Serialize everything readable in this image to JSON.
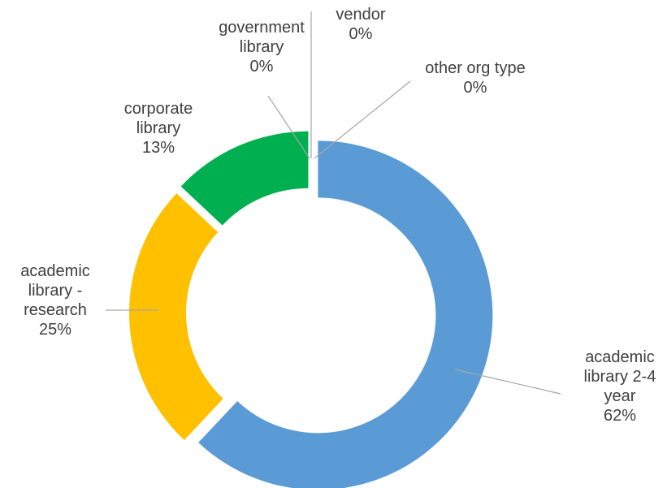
{
  "chart_data": {
    "type": "donut",
    "categories": [
      "academic library 2-4 year",
      "academic library - research",
      "corporate library",
      "government library",
      "vendor",
      "other org type"
    ],
    "values": [
      62,
      25,
      13,
      0,
      0,
      0
    ],
    "value_labels": [
      "62%",
      "25%",
      "13%",
      "0%",
      "0%",
      "0%"
    ],
    "colors": [
      "#5b9bd5",
      "#ffc000",
      "#00b050",
      "#a5a5a5",
      "#4472c4",
      "#70ad47"
    ]
  }
}
